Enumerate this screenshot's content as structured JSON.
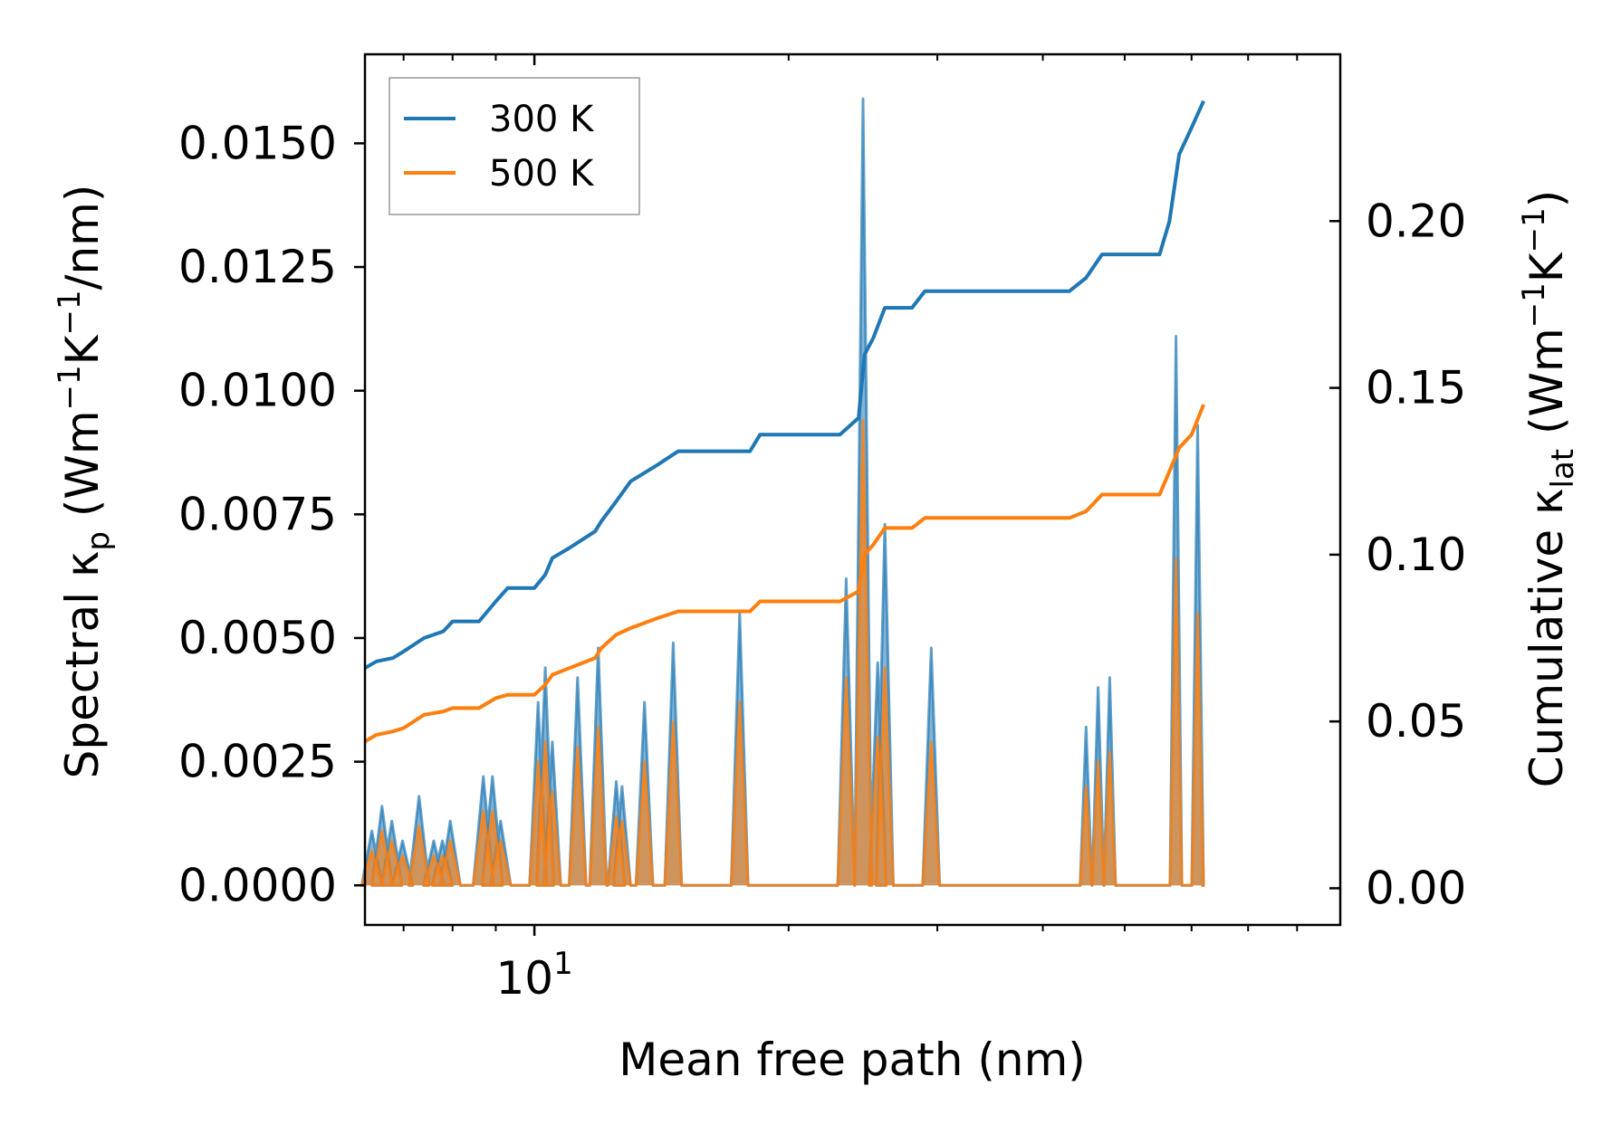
{
  "chart_data": {
    "type": "line",
    "x_scale": "log",
    "xlabel": "Mean free path (nm)",
    "ylabel_left": {
      "main": "Spectral κ",
      "sub": "p",
      "units_pre": " (Wm",
      "units_sup1": "−1",
      "units_mid": "K",
      "units_sup2": "−1",
      "units_post": "/nm)"
    },
    "ylabel_right": {
      "main": "Cumulative κ",
      "sub": "lat",
      "units_pre": " (Wm",
      "units_sup1": "−1",
      "units_mid": "K",
      "units_sup2": "−1",
      "units_post": ")"
    },
    "xlim": [
      6.3,
      90
    ],
    "ylim_left": [
      -0.0008,
      0.0168
    ],
    "ylim_right": [
      -0.011,
      0.25
    ],
    "x_major_ticks": [
      {
        "value": 10,
        "base": "10",
        "exp": "1"
      }
    ],
    "x_minor_ticks": [
      7,
      8,
      9,
      20,
      30,
      40,
      50,
      60,
      70,
      80
    ],
    "y_left_ticks": [
      {
        "value": 0,
        "label": "0.0000"
      },
      {
        "value": 0.0025,
        "label": "0.0025"
      },
      {
        "value": 0.005,
        "label": "0.0050"
      },
      {
        "value": 0.0075,
        "label": "0.0075"
      },
      {
        "value": 0.01,
        "label": "0.0100"
      },
      {
        "value": 0.0125,
        "label": "0.0125"
      },
      {
        "value": 0.015,
        "label": "0.0150"
      }
    ],
    "y_right_ticks": [
      {
        "value": 0,
        "label": "0.00"
      },
      {
        "value": 0.05,
        "label": "0.05"
      },
      {
        "value": 0.1,
        "label": "0.10"
      },
      {
        "value": 0.15,
        "label": "0.15"
      },
      {
        "value": 0.2,
        "label": "0.20"
      }
    ],
    "legend": {
      "position": "top-left",
      "entries": [
        "300 K",
        "500 K"
      ]
    },
    "series": [
      {
        "name": "300 K",
        "color": "#1f77b4",
        "spectral_peaks": [
          [
            6.42,
            0.0011
          ],
          [
            6.6,
            0.0016
          ],
          [
            6.78,
            0.0013
          ],
          [
            6.98,
            0.0009
          ],
          [
            7.3,
            0.0018
          ],
          [
            7.6,
            0.0009
          ],
          [
            7.78,
            0.0009
          ],
          [
            7.95,
            0.0013
          ],
          [
            8.7,
            0.0022
          ],
          [
            8.92,
            0.0022
          ],
          [
            9.12,
            0.0013
          ],
          [
            10.1,
            0.0037
          ],
          [
            10.3,
            0.0044
          ],
          [
            10.5,
            0.0029
          ],
          [
            11.25,
            0.0042
          ],
          [
            11.9,
            0.0048
          ],
          [
            12.5,
            0.0021
          ],
          [
            12.7,
            0.002
          ],
          [
            13.5,
            0.0037
          ],
          [
            14.6,
            0.0049
          ],
          [
            17.5,
            0.0055
          ],
          [
            23.4,
            0.0062
          ],
          [
            24.5,
            0.0159
          ],
          [
            25.5,
            0.0045
          ],
          [
            26.0,
            0.0073
          ],
          [
            29.5,
            0.0048
          ],
          [
            45,
            0.0032
          ],
          [
            46.5,
            0.004
          ],
          [
            48,
            0.0042
          ],
          [
            57.5,
            0.0111
          ],
          [
            61,
            0.0093
          ]
        ],
        "cumulative": [
          [
            6.3,
            0.066
          ],
          [
            6.5,
            0.068
          ],
          [
            6.8,
            0.069
          ],
          [
            7.0,
            0.071
          ],
          [
            7.4,
            0.075
          ],
          [
            7.8,
            0.077
          ],
          [
            8.0,
            0.08
          ],
          [
            8.6,
            0.08
          ],
          [
            9.0,
            0.086
          ],
          [
            9.3,
            0.09
          ],
          [
            10.0,
            0.09
          ],
          [
            10.3,
            0.094
          ],
          [
            10.5,
            0.099
          ],
          [
            11.0,
            0.102
          ],
          [
            11.8,
            0.107
          ],
          [
            12.0,
            0.11
          ],
          [
            12.5,
            0.116
          ],
          [
            13.0,
            0.122
          ],
          [
            14.0,
            0.127
          ],
          [
            14.8,
            0.131
          ],
          [
            18.0,
            0.131
          ],
          [
            18.5,
            0.136
          ],
          [
            23.0,
            0.136
          ],
          [
            24.2,
            0.141
          ],
          [
            24.6,
            0.16
          ],
          [
            25.2,
            0.165
          ],
          [
            26.0,
            0.174
          ],
          [
            28.0,
            0.174
          ],
          [
            29.0,
            0.179
          ],
          [
            43.0,
            0.179
          ],
          [
            45.0,
            0.183
          ],
          [
            47.0,
            0.19
          ],
          [
            55.0,
            0.19
          ],
          [
            56.5,
            0.2
          ],
          [
            58.0,
            0.22
          ],
          [
            60.0,
            0.228
          ],
          [
            62.0,
            0.236
          ]
        ]
      },
      {
        "name": "500 K",
        "color": "#ff7f0e",
        "spectral_peaks": [
          [
            6.42,
            0.0007
          ],
          [
            6.6,
            0.0011
          ],
          [
            6.78,
            0.0009
          ],
          [
            6.98,
            0.0006
          ],
          [
            7.3,
            0.0012
          ],
          [
            7.6,
            0.0006
          ],
          [
            7.78,
            0.0006
          ],
          [
            7.95,
            0.0009
          ],
          [
            8.7,
            0.0015
          ],
          [
            8.92,
            0.0015
          ],
          [
            9.12,
            0.0009
          ],
          [
            10.1,
            0.0025
          ],
          [
            10.3,
            0.0029
          ],
          [
            10.5,
            0.0019
          ],
          [
            11.25,
            0.0028
          ],
          [
            11.9,
            0.0032
          ],
          [
            12.5,
            0.0014
          ],
          [
            12.7,
            0.0013
          ],
          [
            13.5,
            0.0025
          ],
          [
            14.6,
            0.0033
          ],
          [
            17.5,
            0.0037
          ],
          [
            23.4,
            0.0042
          ],
          [
            24.5,
            0.0094
          ],
          [
            25.5,
            0.003
          ],
          [
            26.0,
            0.0044
          ],
          [
            29.5,
            0.0029
          ],
          [
            45,
            0.002
          ],
          [
            46.5,
            0.0025
          ],
          [
            48,
            0.0027
          ],
          [
            57.5,
            0.0066
          ],
          [
            61,
            0.0055
          ]
        ],
        "cumulative": [
          [
            6.3,
            0.044
          ],
          [
            6.5,
            0.046
          ],
          [
            6.8,
            0.047
          ],
          [
            7.0,
            0.048
          ],
          [
            7.4,
            0.052
          ],
          [
            7.8,
            0.053
          ],
          [
            8.0,
            0.054
          ],
          [
            8.6,
            0.054
          ],
          [
            9.0,
            0.057
          ],
          [
            9.3,
            0.058
          ],
          [
            10.0,
            0.058
          ],
          [
            10.3,
            0.061
          ],
          [
            10.5,
            0.064
          ],
          [
            11.0,
            0.066
          ],
          [
            11.8,
            0.069
          ],
          [
            12.0,
            0.072
          ],
          [
            12.5,
            0.076
          ],
          [
            13.0,
            0.078
          ],
          [
            14.0,
            0.081
          ],
          [
            14.8,
            0.083
          ],
          [
            18.0,
            0.083
          ],
          [
            18.5,
            0.086
          ],
          [
            23.0,
            0.086
          ],
          [
            24.2,
            0.089
          ],
          [
            24.6,
            0.1
          ],
          [
            25.2,
            0.103
          ],
          [
            26.0,
            0.108
          ],
          [
            28.0,
            0.108
          ],
          [
            29.0,
            0.111
          ],
          [
            43.0,
            0.111
          ],
          [
            45.0,
            0.113
          ],
          [
            47.0,
            0.118
          ],
          [
            55.0,
            0.118
          ],
          [
            56.5,
            0.125
          ],
          [
            58.0,
            0.132
          ],
          [
            60.0,
            0.136
          ],
          [
            62.0,
            0.145
          ]
        ]
      }
    ]
  }
}
